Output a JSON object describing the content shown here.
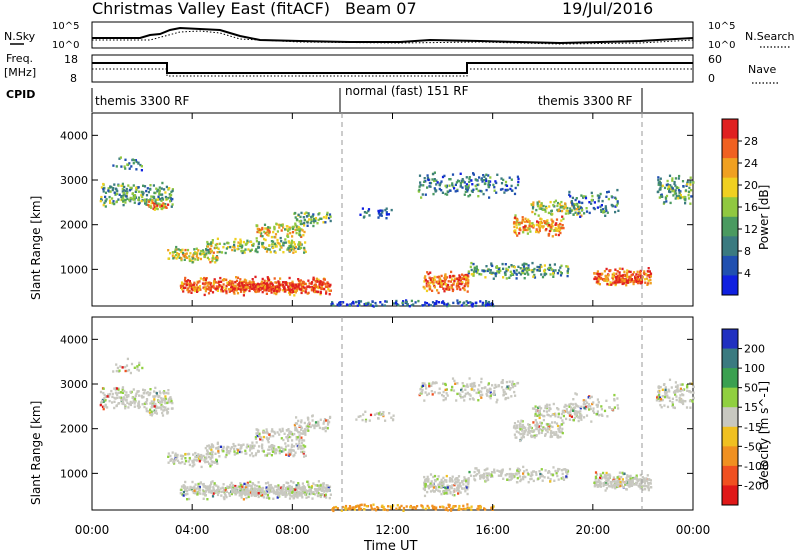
{
  "header": {
    "title": "Christmas Valley East (fitACF)",
    "beam": "Beam 07",
    "date": "19/Jul/2016"
  },
  "labels": {
    "nsky": "N.Sky",
    "nsearch": "N.Search",
    "freq": "Freq.",
    "freq_unit": "[MHz]",
    "nave": "Nave",
    "cpid": "CPID"
  },
  "strip_ticks": {
    "noise_left": [
      "10^5",
      "10^0"
    ],
    "noise_right": [
      "10^5",
      "10^0"
    ],
    "freq_left": [
      "18",
      "8"
    ],
    "nave_right": [
      "60",
      "0"
    ]
  },
  "cpid_segments": [
    {
      "label": "themis 3300 RF"
    },
    {
      "label": "normal (fast) 151 RF"
    },
    {
      "label": "themis 3300 RF"
    }
  ],
  "chart_data": [
    {
      "type": "heatmap",
      "title": "",
      "ylabel": "Slant Range [km]",
      "xlabel": "",
      "ylim": [
        180,
        4500
      ],
      "yticks": [
        "1000",
        "2000",
        "3000",
        "4000"
      ],
      "xlim": [
        "00:00",
        "24:00"
      ],
      "colorbar": {
        "label": "Power [dB]",
        "ticks": [
          "4",
          "8",
          "12",
          "16",
          "20",
          "24",
          "28"
        ],
        "colors": [
          "#1020e0",
          "#2050b0",
          "#3a7a80",
          "#4a9a60",
          "#90c840",
          "#f0d020",
          "#f0a020",
          "#f06020",
          "#e02020"
        ]
      }
    },
    {
      "type": "heatmap",
      "title": "",
      "ylabel": "Slant Range [km]",
      "xlabel": "Time UT",
      "ylim": [
        180,
        4500
      ],
      "yticks": [
        "1000",
        "2000",
        "3000",
        "4000"
      ],
      "xticks": [
        "00:00",
        "04:00",
        "08:00",
        "12:00",
        "16:00",
        "20:00",
        "00:00"
      ],
      "colorbar": {
        "label": "Velocity [m s^-1]",
        "ticks": [
          "200",
          "100",
          "50",
          "15",
          "-15",
          "-50",
          "-100",
          "-200"
        ],
        "colors": [
          "#2030c0",
          "#3a7a80",
          "#3aa050",
          "#90d040",
          "#c8c8c0",
          "#f0c020",
          "#f09020",
          "#f05020",
          "#e01818"
        ]
      }
    }
  ]
}
